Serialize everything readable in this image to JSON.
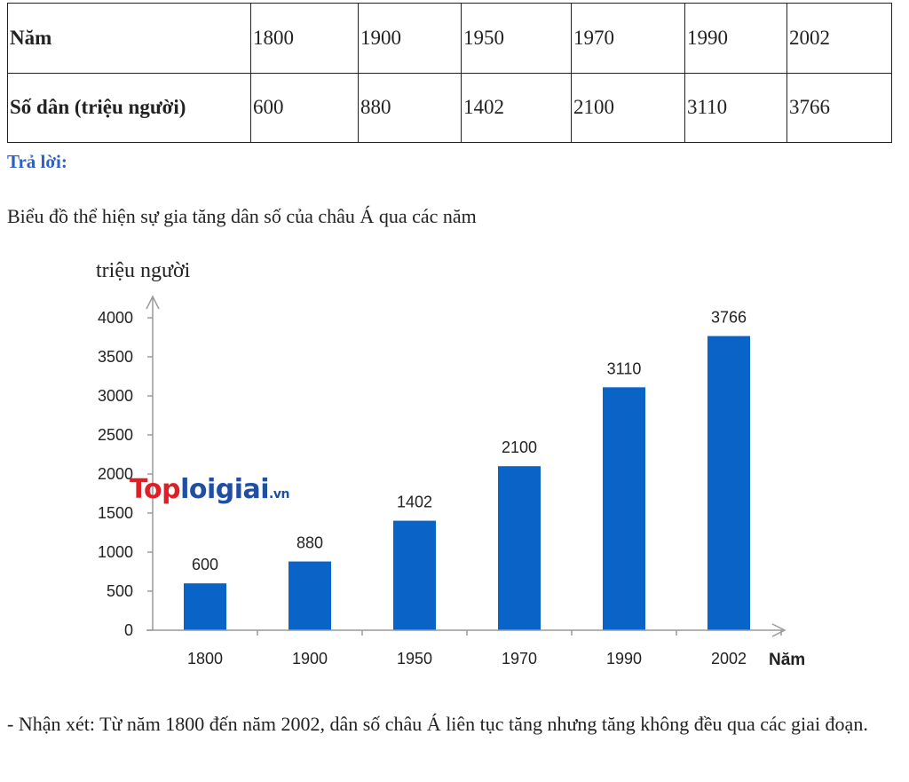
{
  "table": {
    "row1_label": "Năm",
    "row2_label": "Số dân (triệu người)",
    "years": [
      "1800",
      "1900",
      "1950",
      "1970",
      "1990",
      "2002"
    ],
    "populations": [
      "600",
      "880",
      "1402",
      "2100",
      "3110",
      "3766"
    ]
  },
  "answer_label": "Trả lời:",
  "caption": "Biểu đồ thể hiện sự gia tăng dân số của châu Á qua các năm",
  "watermark": {
    "brand_red": "Top",
    "brand_blue": "loigiai",
    "suffix": ".vn"
  },
  "remark": "- Nhận xét: Từ năm 1800 đến năm 2002, dân số châu Á liên tục tăng nhưng tăng không đều qua các giai đoạn.",
  "chart_data": {
    "type": "bar",
    "categories": [
      "1800",
      "1900",
      "1950",
      "1970",
      "1990",
      "2002"
    ],
    "values": [
      600,
      880,
      1402,
      2100,
      3110,
      3766
    ],
    "data_labels": [
      "600",
      "880",
      "1402",
      "2100",
      "3110",
      "3766"
    ],
    "xlabel": "Năm",
    "ylabel": "triệu người",
    "ylim": [
      0,
      4000
    ],
    "yticks": [
      0,
      500,
      1000,
      1500,
      2000,
      2500,
      3000,
      3500,
      4000
    ],
    "bar_color": "#0a64c8",
    "grid": false,
    "legend": "none"
  }
}
